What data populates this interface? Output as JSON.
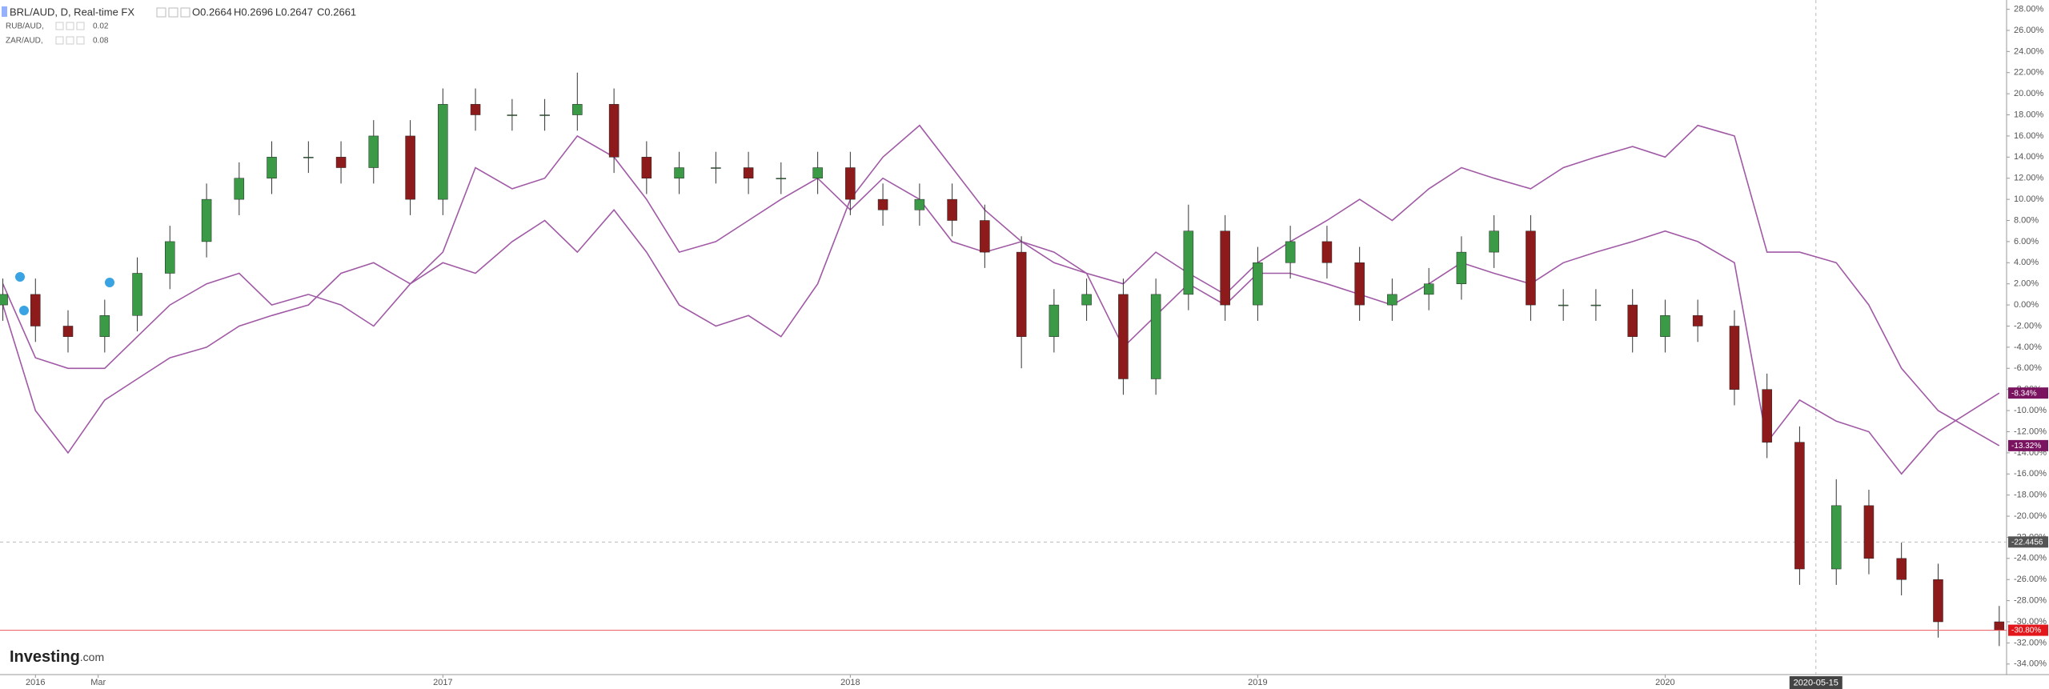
{
  "chart_data": {
    "type": "candlestick",
    "header": {
      "symbol": "BRL/AUD, D, Real-time FX",
      "ohlc": [
        "O0.2664",
        "H0.2696",
        "L0.2647",
        "C0.2661"
      ]
    },
    "x": [
      2015.92,
      2016.0,
      2016.08,
      2016.17,
      2016.25,
      2016.33,
      2016.42,
      2016.5,
      2016.58,
      2016.67,
      2016.75,
      2016.83,
      2016.92,
      2017.0,
      2017.08,
      2017.17,
      2017.25,
      2017.33,
      2017.42,
      2017.5,
      2017.58,
      2017.67,
      2017.75,
      2017.83,
      2017.92,
      2018.0,
      2018.08,
      2018.17,
      2018.25,
      2018.33,
      2018.42,
      2018.5,
      2018.58,
      2018.67,
      2018.75,
      2018.83,
      2018.92,
      2019.0,
      2019.08,
      2019.17,
      2019.25,
      2019.33,
      2019.42,
      2019.5,
      2019.58,
      2019.67,
      2019.75,
      2019.83,
      2019.92,
      2020.0,
      2020.08,
      2020.17,
      2020.25,
      2020.33,
      2020.42,
      2020.5,
      2020.58,
      2020.67,
      2020.82
    ],
    "xlim": [
      2015.913,
      2020.838
    ],
    "xticks": [
      {
        "value": 2016,
        "label": "2016"
      },
      {
        "value": 2016.154,
        "label": "Mar"
      },
      {
        "value": 2017,
        "label": "2017"
      },
      {
        "value": 2018,
        "label": "2018"
      },
      {
        "value": 2019,
        "label": "2019"
      },
      {
        "value": 2020,
        "label": "2020"
      }
    ],
    "ylim": [
      -35,
      28.8
    ],
    "yticks": [
      {
        "value": 28,
        "label": "28.00%"
      },
      {
        "value": 26,
        "label": "26.00%"
      },
      {
        "value": 24,
        "label": "24.00%"
      },
      {
        "value": 22,
        "label": "22.00%"
      },
      {
        "value": 20,
        "label": "20.00%"
      },
      {
        "value": 18,
        "label": "18.00%"
      },
      {
        "value": 16,
        "label": "16.00%"
      },
      {
        "value": 14,
        "label": "14.00%"
      },
      {
        "value": 12,
        "label": "12.00%"
      },
      {
        "value": 10,
        "label": "10.00%"
      },
      {
        "value": 8,
        "label": "8.00%"
      },
      {
        "value": 6,
        "label": "6.00%"
      },
      {
        "value": 4,
        "label": "4.00%"
      },
      {
        "value": 2,
        "label": "2.00%"
      },
      {
        "value": 0,
        "label": "0.00%"
      },
      {
        "value": -2,
        "label": "-2.00%"
      },
      {
        "value": -4,
        "label": "-4.00%"
      },
      {
        "value": -6,
        "label": "-6.00%"
      },
      {
        "value": -8,
        "label": "-8.00%"
      },
      {
        "value": -10,
        "label": "-10.00%"
      },
      {
        "value": -12,
        "label": "-12.00%"
      },
      {
        "value": -14,
        "label": "-14.00%"
      },
      {
        "value": -16,
        "label": "-16.00%"
      },
      {
        "value": -18,
        "label": "-18.00%"
      },
      {
        "value": -20,
        "label": "-20.00%"
      },
      {
        "value": -22,
        "label": "-22.00%"
      },
      {
        "value": -24,
        "label": "-24.00%"
      },
      {
        "value": -26,
        "label": "-26.00%"
      },
      {
        "value": -28,
        "label": "-28.00%"
      },
      {
        "value": -30,
        "label": "-30.00%"
      },
      {
        "value": -32,
        "label": "-32.00%"
      },
      {
        "value": -34,
        "label": "-34.00%"
      }
    ],
    "candles": {
      "color_up": "#3a9a46",
      "color_down": "#8e1b1b",
      "price_line_color": "#e8575b",
      "last_value_label": "-30.80%",
      "open": [
        0,
        1,
        -2,
        -3,
        -1,
        3,
        6,
        10,
        12,
        14,
        14,
        13,
        16,
        10,
        19,
        18,
        18,
        18,
        19,
        14,
        12,
        13,
        13,
        12,
        12,
        13,
        10,
        9,
        10,
        8,
        5,
        -3,
        0,
        1,
        -7,
        1,
        7,
        0,
        4,
        6,
        4,
        0,
        1,
        2,
        5,
        7,
        0,
        0,
        0,
        -3,
        -1,
        -2,
        -8,
        -13,
        -25,
        -19,
        -24,
        -26,
        -30
      ],
      "high": [
        2.5,
        2.5,
        -0.5,
        0.5,
        4.5,
        7.5,
        11.5,
        13.5,
        15.5,
        15.5,
        15.5,
        17.5,
        17.5,
        20.5,
        20.5,
        19.5,
        19.5,
        22,
        20.5,
        15.5,
        14.5,
        14.5,
        14.5,
        13.5,
        14.5,
        14.5,
        11.5,
        11.5,
        11.5,
        9.5,
        6.5,
        1.5,
        2.5,
        2.5,
        2.5,
        9.5,
        8.5,
        5.5,
        7.5,
        7.5,
        5.5,
        2.5,
        3.5,
        6.5,
        8.5,
        8.5,
        1.5,
        1.5,
        1.5,
        0.5,
        0.5,
        -0.5,
        -6.5,
        -11.5,
        -16.5,
        -17.5,
        -22.5,
        -24.5,
        -28.5
      ],
      "low": [
        -1.5,
        -3.5,
        -4.5,
        -4.5,
        -2.5,
        1.5,
        4.5,
        8.5,
        10.5,
        12.5,
        11.5,
        11.5,
        8.5,
        8.5,
        16.5,
        16.5,
        16.5,
        16.5,
        12.5,
        10.5,
        10.5,
        11.5,
        10.5,
        10.5,
        10.5,
        8.5,
        7.5,
        7.5,
        6.5,
        3.5,
        -6,
        -4.5,
        -1.5,
        -8.5,
        -8.5,
        -0.5,
        -1.5,
        -1.5,
        2.5,
        2.5,
        -1.5,
        -1.5,
        -0.5,
        0.5,
        3.5,
        -1.5,
        -1.5,
        -1.5,
        -4.5,
        -4.5,
        -3.5,
        -9.5,
        -14.5,
        -26.5,
        -26.5,
        -25.5,
        -27.5,
        -31.5,
        -32.3
      ],
      "close": [
        1,
        -2,
        -3,
        -1,
        3,
        6,
        10,
        12,
        14,
        14,
        13,
        16,
        10,
        19,
        18,
        18,
        18,
        19,
        14,
        12,
        13,
        13,
        12,
        12,
        13,
        10,
        9,
        10,
        8,
        5,
        -3,
        0,
        1,
        -7,
        1,
        7,
        0,
        4,
        6,
        4,
        0,
        1,
        2,
        5,
        7,
        0,
        0,
        0,
        -3,
        -1,
        -2,
        -8,
        -13,
        -25,
        -19,
        -24,
        -26,
        -30,
        -30.8
      ]
    },
    "series": [
      {
        "name": "RUB/AUD,",
        "legend_value": 0.02,
        "color": "#a05aa5",
        "last_value_label": "-13.32%",
        "values": [
          0,
          -10,
          -14,
          -9,
          -7,
          -5,
          -4,
          -2,
          -1,
          0,
          3,
          4,
          2,
          4,
          3,
          6,
          8,
          5,
          9,
          5,
          0,
          -2,
          -1,
          -3,
          2,
          10,
          14,
          17,
          13,
          9,
          6,
          5,
          3,
          2,
          5,
          3,
          1,
          4,
          6,
          8,
          10,
          8,
          11,
          13,
          12,
          11,
          13,
          14,
          15,
          14,
          17,
          16,
          5,
          5,
          4,
          0,
          -6,
          -10,
          -13.32
        ]
      },
      {
        "name": "ZAR/AUD,",
        "legend_value": 0.08,
        "color": "#a05aa5",
        "last_value_label": "-8.34%",
        "values": [
          2,
          -5,
          -6,
          -6,
          -3,
          0,
          2,
          3,
          0,
          1,
          0,
          -2,
          2,
          5,
          13,
          11,
          12,
          16,
          14,
          10,
          5,
          6,
          8,
          10,
          12,
          9,
          12,
          10,
          6,
          5,
          6,
          4,
          3,
          -4,
          -1,
          2,
          0,
          3,
          3,
          2,
          1,
          0,
          2,
          4,
          3,
          2,
          4,
          5,
          6,
          7,
          6,
          4,
          -13,
          -9,
          -11,
          -12,
          -16,
          -12,
          -8.34
        ]
      }
    ],
    "crosshair": {
      "x": 2020.37,
      "x_label": "2020-05-15",
      "y": -22.4456
    },
    "logo": {
      "main": "Investing",
      "suffix": ".com"
    }
  }
}
